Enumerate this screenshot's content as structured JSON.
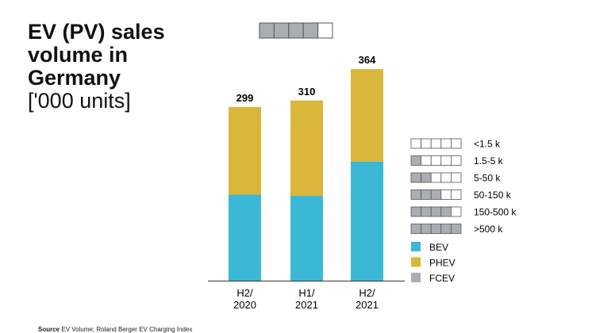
{
  "title": {
    "main": "EV (PV) sales volume in Germany",
    "unit": "['000 units]"
  },
  "source": {
    "label": "Source",
    "text": "EV Volume; Roland Berger EV Charging Index"
  },
  "chart_data": {
    "type": "bar",
    "stacked": true,
    "categories": [
      [
        "H2/",
        "2020"
      ],
      [
        "H1/",
        "2021"
      ],
      [
        "H2/",
        "2021"
      ]
    ],
    "totals": [
      299,
      310,
      364
    ],
    "series": [
      {
        "name": "BEV",
        "color": "#3cb8d6",
        "values": [
          148,
          146,
          205
        ]
      },
      {
        "name": "PHEV",
        "color": "#d9b73b",
        "values": [
          151,
          164,
          159
        ]
      },
      {
        "name": "FCEV",
        "color": "#a9aeb4",
        "values": [
          0,
          0,
          0
        ]
      }
    ],
    "ylim": [
      0,
      380
    ],
    "grid": false,
    "indicator": {
      "filled": 4,
      "of": 5
    },
    "scale_legend": [
      {
        "label": "<1.5 k",
        "filled": 0
      },
      {
        "label": "1.5-5 k",
        "filled": 1
      },
      {
        "label": "5-50 k",
        "filled": 2
      },
      {
        "label": "50-150 k",
        "filled": 3
      },
      {
        "label": "150-500 k",
        "filled": 4
      },
      {
        "label": ">500 k",
        "filled": 5
      }
    ],
    "legend_position": "right"
  }
}
